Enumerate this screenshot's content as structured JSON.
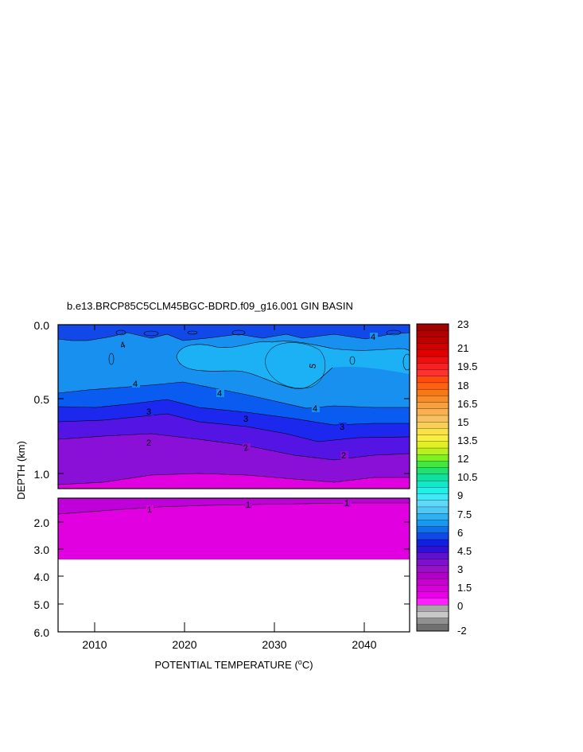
{
  "chart_data": {
    "type": "heatmap",
    "title": "b.e13.BRCP85C5CLM45BGC-BDRD.f09_g16.001 GIN BASIN",
    "xlabel_parts": [
      "POTENTIAL TEMPERATURE (",
      "o",
      "C)"
    ],
    "ylabel": "DEPTH (km)",
    "x_ticks": [
      "2010",
      "2020",
      "2030",
      "2040"
    ],
    "y_ticks_upper": [
      "0.0",
      "0.5",
      "1.0"
    ],
    "y_ticks_lower": [
      "2.0",
      "3.0",
      "4.0",
      "5.0",
      "6.0"
    ],
    "colorbar_labels": [
      "23",
      "21",
      "19.5",
      "18",
      "16.5",
      "15",
      "13.5",
      "12",
      "10.5",
      "9",
      "7.5",
      "6",
      "4.5",
      "3",
      "1.5",
      "0",
      "-2"
    ],
    "contour_labels": [
      "4",
      "4",
      "4",
      "4",
      "5",
      "4",
      "3",
      "3",
      "3",
      "2",
      "2",
      "2",
      "1",
      "1",
      "1"
    ],
    "x_range": [
      2006,
      2045
    ],
    "depth_range_upper_km": [
      0,
      1.12
    ],
    "depth_range_lower_km": [
      1.12,
      6.0
    ],
    "data_bottom_km": 3.35,
    "temperature_bands_c": [
      {
        "band": "4.0-5.0",
        "depth_km": [
          0.03,
          0.47
        ]
      },
      {
        "band": "3.5-4.0",
        "depth_km": [
          0.47,
          0.55
        ]
      },
      {
        "band": "3.0-3.5",
        "depth_km": [
          0.55,
          0.64
        ]
      },
      {
        "band": "2.5-3.0",
        "depth_km": [
          0.64,
          0.76
        ]
      },
      {
        "band": "1.5-2.5",
        "depth_km": [
          0.76,
          1.03
        ]
      },
      {
        "band": "1.0-1.5",
        "depth_km": [
          1.03,
          1.75
        ]
      },
      {
        "band": "0.5-1.0",
        "depth_km": [
          1.75,
          3.35
        ]
      }
    ],
    "warm_core_c": 5,
    "colors": {
      "deep": "#e000e0",
      "band_1": "#c000d8",
      "band_2": "#8a10d8",
      "band_25": "#5414e4",
      "band_3": "#1c28ee",
      "band_35": "#0a5cf0",
      "band_4": "#1890f0",
      "band_5": "#1cb0f4",
      "surface": "#1248e8"
    }
  }
}
